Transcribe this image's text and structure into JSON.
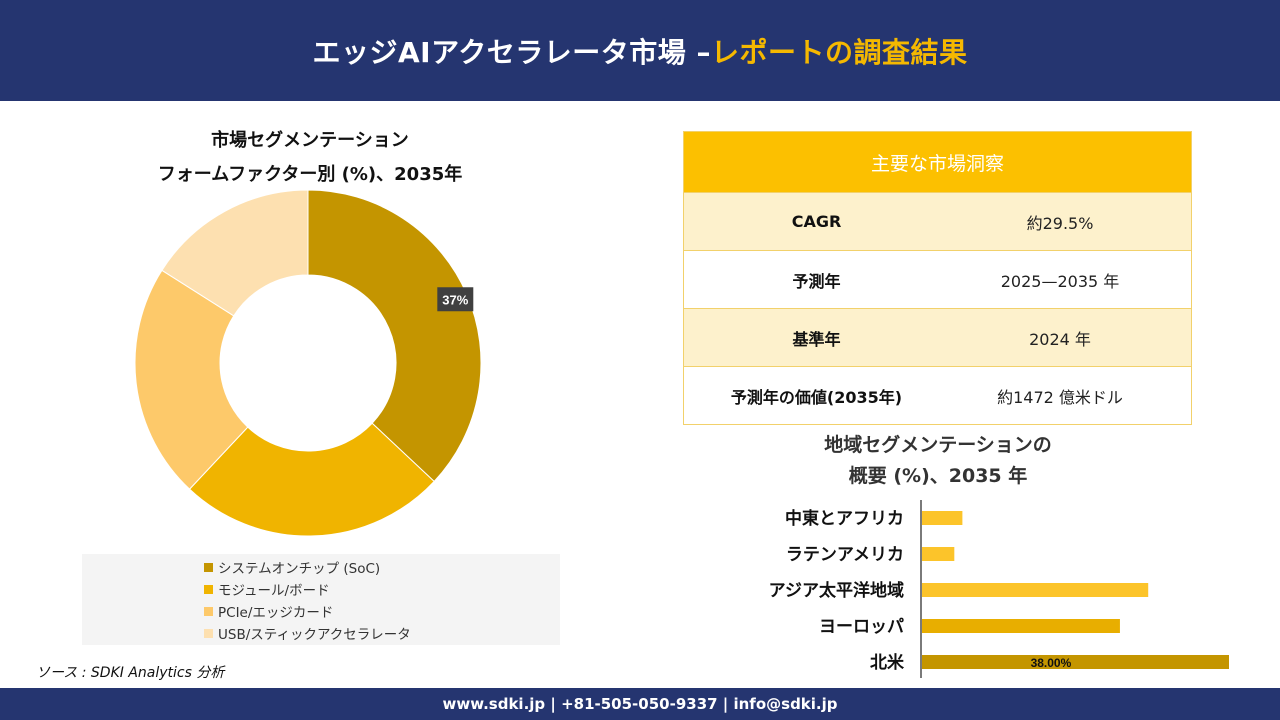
{
  "header": {
    "title_main": "エッジAIアクセラレータ市場 –",
    "title_accent": "レポートの調査結果"
  },
  "donut": {
    "title_line1": "市場セグメンテーション",
    "title_line2": "フォームファクター別 (%)、2035年"
  },
  "insights": {
    "heading": "主要な市場洞察",
    "rows": [
      {
        "label": "CAGR",
        "value": "約29.5%"
      },
      {
        "label": "予測年",
        "value": "2025—2035 年"
      },
      {
        "label": "基準年",
        "value": "2024 年"
      },
      {
        "label": "予測年の価値(2035年)",
        "value": "約1472 億米ドル"
      }
    ]
  },
  "regions": {
    "title_line1": "地域セグメンテーションの",
    "title_line2": "概要 (%)、2035 年"
  },
  "source": "ソース : SDKI Analytics 分析",
  "footer": "www.sdki.jp | +81-505-050-9337 | info@sdki.jp",
  "chart_data": [
    {
      "type": "pie",
      "title": "市場セグメンテーション フォームファクター別 (%)、2035年",
      "categories": [
        "システムオンチップ (SoC)",
        "モジュール/ボード",
        "PCIe/エッジカード",
        "USB/スティックアクセラレータ"
      ],
      "values": [
        37,
        25,
        22,
        16
      ],
      "colors": [
        "#c49500",
        "#f0b400",
        "#fdc96a",
        "#fde0b0"
      ],
      "data_labels": [
        "37%",
        "",
        "",
        ""
      ],
      "legend": "bottom"
    },
    {
      "type": "bar",
      "orientation": "horizontal",
      "title": "地域セグメンテーションの概要 (%)、2035 年",
      "categories": [
        "中東とアフリカ",
        "ラテンアメリカ",
        "アジア太平洋地域",
        "ヨーロッパ",
        "北米"
      ],
      "values": [
        5,
        4,
        28,
        24.5,
        38
      ],
      "data_labels": [
        "",
        "",
        "",
        "",
        "38.00%"
      ],
      "colors": [
        "#fcc42a",
        "#fcc42a",
        "#fcc42a",
        "#e8ae00",
        "#c49500"
      ],
      "xlim": [
        0,
        38
      ]
    }
  ]
}
